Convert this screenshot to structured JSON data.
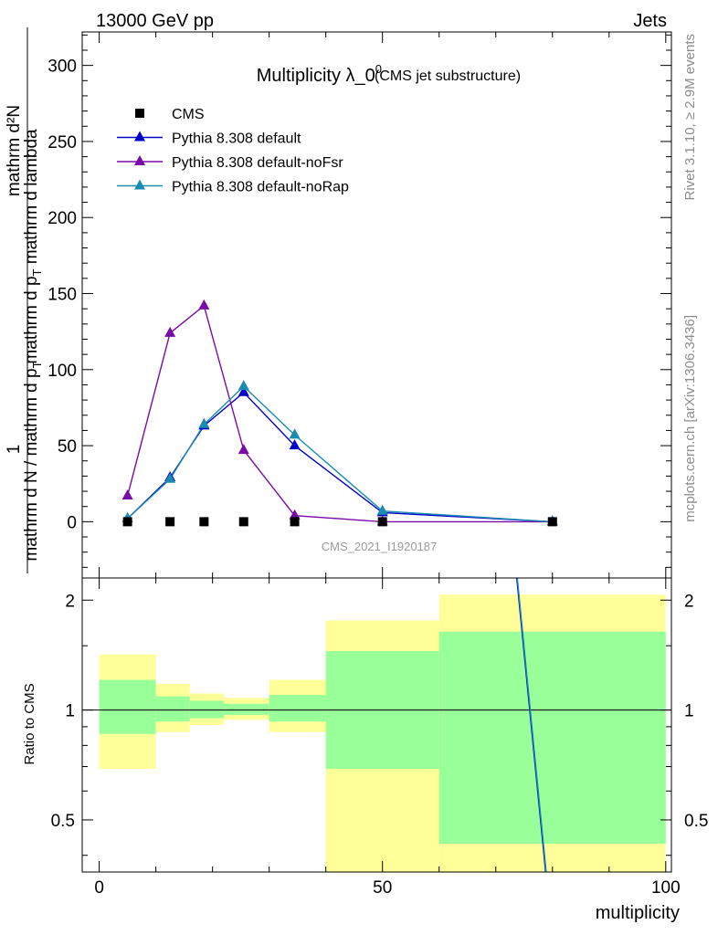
{
  "header": {
    "energy_label": "13000 GeV pp",
    "process_label": "Jets"
  },
  "side_labels": {
    "rivet": "Rivet 3.1.10, ≥ 2.9M events",
    "mcplots": "mcplots.cern.ch [arXiv:1306.3436]"
  },
  "colors": {
    "cms": "#000000",
    "default": "#0000cc",
    "noFsr": "#7a0aa8",
    "noRap": "#1a8cb0",
    "band_inner": "#99ff99",
    "band_outer": "#ffff99",
    "ref_label": "#9a9a9a"
  },
  "chart_data": [
    {
      "type": "line",
      "title": "Multiplicity λ_0",
      "title_sup": "0",
      "subtitle": "(CMS jet substructure)",
      "ylabel": {
        "numerator": "mathrm d²N",
        "numerator_extra": "mathrm d p",
        "numerator_sub": "T",
        "numerator_tail": " mathrm d lambda",
        "prefix": "1",
        "denominator": "mathrm d N / mathrm d p",
        "denominator_sub": "T"
      },
      "ref_label": "CMS_2021_I1920187",
      "xlim": [
        -3,
        101
      ],
      "ylim": [
        -37,
        322
      ],
      "yticks": [
        0,
        50,
        100,
        150,
        200,
        250,
        300
      ],
      "legend": {
        "placement": "top-left",
        "entries": [
          "CMS",
          "Pythia 8.308 default",
          "Pythia 8.308 default-noFsr",
          "Pythia 8.308 default-noRap"
        ]
      },
      "series": [
        {
          "name": "CMS",
          "marker": "square",
          "x": [
            5,
            12.5,
            18.5,
            25.5,
            34.5,
            50,
            80
          ],
          "y": [
            0,
            0,
            0,
            0,
            0,
            0,
            0
          ]
        },
        {
          "name": "Pythia 8.308 default",
          "marker": "triangle",
          "x": [
            5,
            12.5,
            18.5,
            25.5,
            34.5,
            50,
            80
          ],
          "y": [
            2,
            29,
            63,
            85,
            50,
            6,
            0
          ]
        },
        {
          "name": "Pythia 8.308 default-noFsr",
          "marker": "triangle",
          "x": [
            5,
            12.5,
            18.5,
            25.5,
            34.5,
            50,
            80
          ],
          "y": [
            17,
            124,
            142,
            47,
            4,
            0,
            0
          ]
        },
        {
          "name": "Pythia 8.308 default-noRap",
          "marker": "triangle",
          "x": [
            5,
            12.5,
            18.5,
            25.5,
            34.5,
            50,
            80
          ],
          "y": [
            2,
            28,
            64,
            89,
            57,
            7,
            0
          ]
        }
      ]
    },
    {
      "type": "line",
      "xlabel": "multiplicity",
      "ylabel": "Ratio to CMS",
      "xlim": [
        -3,
        101
      ],
      "ylim": [
        0.36,
        2.3
      ],
      "yscale": "log",
      "xticks": [
        0,
        50,
        100
      ],
      "yticks": [
        0.5,
        1,
        2
      ],
      "ytick_labels": [
        "0.5",
        "1",
        "2"
      ],
      "bands": [
        {
          "x0": 0,
          "x1": 10,
          "inner": [
            0.86,
            1.21
          ],
          "outer": [
            0.69,
            1.42
          ]
        },
        {
          "x0": 10,
          "x1": 16,
          "inner": [
            0.93,
            1.09
          ],
          "outer": [
            0.87,
            1.18
          ]
        },
        {
          "x0": 16,
          "x1": 22,
          "inner": [
            0.95,
            1.06
          ],
          "outer": [
            0.91,
            1.11
          ]
        },
        {
          "x0": 22,
          "x1": 30,
          "inner": [
            0.97,
            1.04
          ],
          "outer": [
            0.94,
            1.08
          ]
        },
        {
          "x0": 30,
          "x1": 40,
          "inner": [
            0.93,
            1.1
          ],
          "outer": [
            0.87,
            1.21
          ]
        },
        {
          "x0": 40,
          "x1": 60,
          "inner": [
            0.69,
            1.45
          ],
          "outer": [
            0.33,
            1.76
          ]
        },
        {
          "x0": 60,
          "x1": 100,
          "inner": [
            0.43,
            1.64
          ],
          "outer": [
            0.33,
            2.07
          ]
        }
      ],
      "series": [
        {
          "name": "Pythia 8.308 default",
          "x": [
            73.7,
            78.8
          ],
          "y": [
            2.4,
            0.35
          ]
        },
        {
          "name": "Pythia 8.308 default-noRap",
          "x": [
            73.8,
            78.9
          ],
          "y": [
            2.4,
            0.35
          ]
        }
      ]
    }
  ]
}
